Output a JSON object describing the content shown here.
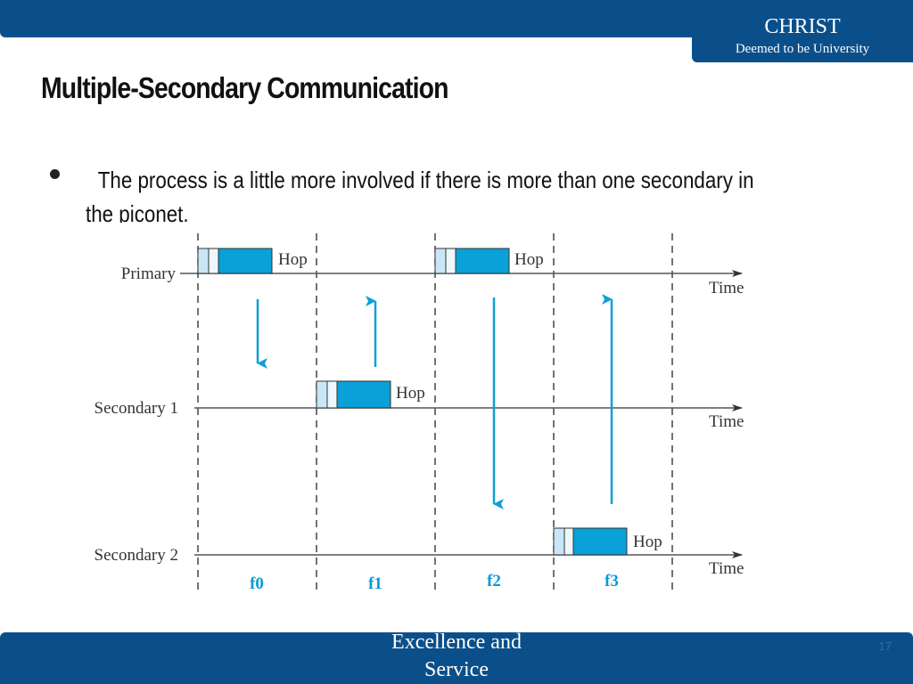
{
  "header": {
    "brand_name": "CHRIST",
    "brand_sub": "Deemed to be University"
  },
  "slide": {
    "title": "Multiple-Secondary Communication",
    "bullet": "The process is a little more involved if there is more than one secondary in the piconet."
  },
  "diagram": {
    "rows": [
      {
        "label": "Primary",
        "time_label": "Time",
        "hop_label": "Hop"
      },
      {
        "label": "Secondary 1",
        "time_label": "Time",
        "hop_label": "Hop"
      },
      {
        "label": "Secondary 2",
        "time_label": "Time",
        "hop_label": "Hop"
      }
    ],
    "slots": [
      "f0",
      "f1",
      "f2",
      "f3"
    ],
    "colors": {
      "packet": "#0aa0d8",
      "header": "#c8e6f5",
      "arrow": "#0aa0d8",
      "slot_label": "#0a9bd4"
    }
  },
  "footer": {
    "text": "Excellence and Service",
    "page_number": "17"
  }
}
